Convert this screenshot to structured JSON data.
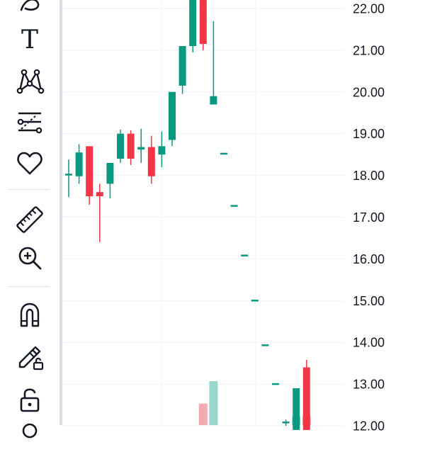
{
  "toolbar": {
    "tools": [
      {
        "name": "curve-tool-icon",
        "icon": "curve"
      },
      {
        "name": "text-tool",
        "icon": "T"
      },
      {
        "name": "pattern-tool-icon",
        "icon": "pattern"
      },
      {
        "name": "fib-tool-icon",
        "icon": "fib"
      },
      {
        "name": "favorites-icon",
        "icon": "heart"
      },
      {
        "name": "ruler-icon",
        "icon": "ruler"
      },
      {
        "name": "zoom-in-icon",
        "icon": "zoom"
      },
      {
        "name": "magnet-icon",
        "icon": "magnet"
      },
      {
        "name": "lock-drawing-icon",
        "icon": "pencil-lock"
      },
      {
        "name": "unlock-icon",
        "icon": "lock-open"
      }
    ],
    "text_tool_glyph": "T"
  },
  "colors": {
    "up": "#089981",
    "down": "#f23645",
    "up_volume": "#99d6cc",
    "down_volume": "#f7a9b0",
    "grid": "#f0f3fa",
    "text": "#131722",
    "border": "#d9dce6"
  },
  "chart_data": {
    "type": "candlestick",
    "y_axis": {
      "side": "right",
      "range": [
        11.9,
        22.2
      ],
      "ticks": [
        "13.00",
        "14.00",
        "15.00",
        "16.00",
        "17.00",
        "18.00",
        "19.00",
        "20.00",
        "21.00",
        "22.00",
        "12.00"
      ]
    },
    "grid": true,
    "candles": [
      {
        "open": 18.02,
        "high": 18.38,
        "low": 17.48,
        "close": 18.02
      },
      {
        "open": 17.98,
        "high": 18.75,
        "low": 17.8,
        "close": 18.55
      },
      {
        "open": 18.7,
        "high": 18.7,
        "low": 17.3,
        "close": 17.5
      },
      {
        "open": 17.6,
        "high": 17.8,
        "low": 16.4,
        "close": 17.5
      },
      {
        "open": 17.8,
        "high": 18.3,
        "low": 17.45,
        "close": 18.3
      },
      {
        "open": 18.4,
        "high": 19.1,
        "low": 18.3,
        "close": 19.0
      },
      {
        "open": 19.0,
        "high": 19.08,
        "low": 18.25,
        "close": 18.4
      },
      {
        "open": 18.62,
        "high": 19.12,
        "low": 18.3,
        "close": 18.68
      },
      {
        "open": 18.68,
        "high": 18.95,
        "low": 17.8,
        "close": 17.98
      },
      {
        "open": 18.5,
        "high": 19.05,
        "low": 18.2,
        "close": 18.7
      },
      {
        "open": 18.85,
        "high": 20.0,
        "low": 18.7,
        "close": 20.0
      },
      {
        "open": 20.15,
        "high": 21.1,
        "low": 19.95,
        "close": 21.1
      },
      {
        "open": 21.1,
        "high": 22.3,
        "low": 20.95,
        "close": 22.3
      },
      {
        "open": 22.3,
        "high": 22.3,
        "low": 21.0,
        "close": 21.15
      },
      {
        "open": 19.7,
        "high": 21.7,
        "low": 19.7,
        "close": 19.9
      },
      {
        "open": 18.52,
        "high": 18.52,
        "low": 18.52,
        "close": 18.52
      },
      {
        "open": 17.27,
        "high": 17.27,
        "low": 17.27,
        "close": 17.27
      },
      {
        "open": 16.08,
        "high": 16.08,
        "low": 16.08,
        "close": 16.08
      },
      {
        "open": 15.0,
        "high": 15.0,
        "low": 15.0,
        "close": 15.0
      },
      {
        "open": 13.93,
        "high": 13.93,
        "low": 13.93,
        "close": 13.93
      },
      {
        "open": 13.0,
        "high": 13.0,
        "low": 13.0,
        "close": 13.0
      },
      {
        "open": 12.08,
        "high": 12.15,
        "low": 12.0,
        "close": 12.08
      },
      {
        "open": 11.9,
        "high": 12.9,
        "low": 11.9,
        "close": 12.9
      },
      {
        "open": 13.4,
        "high": 13.58,
        "low": 11.9,
        "close": 11.9
      }
    ],
    "volume": [
      {
        "index": 13,
        "value": 0.49,
        "direction": "down"
      },
      {
        "index": 14,
        "value": 1.0,
        "direction": "up"
      },
      {
        "index": 22,
        "value": 0.2,
        "direction": "up"
      },
      {
        "index": 23,
        "value": 0.2,
        "direction": "down"
      }
    ]
  }
}
